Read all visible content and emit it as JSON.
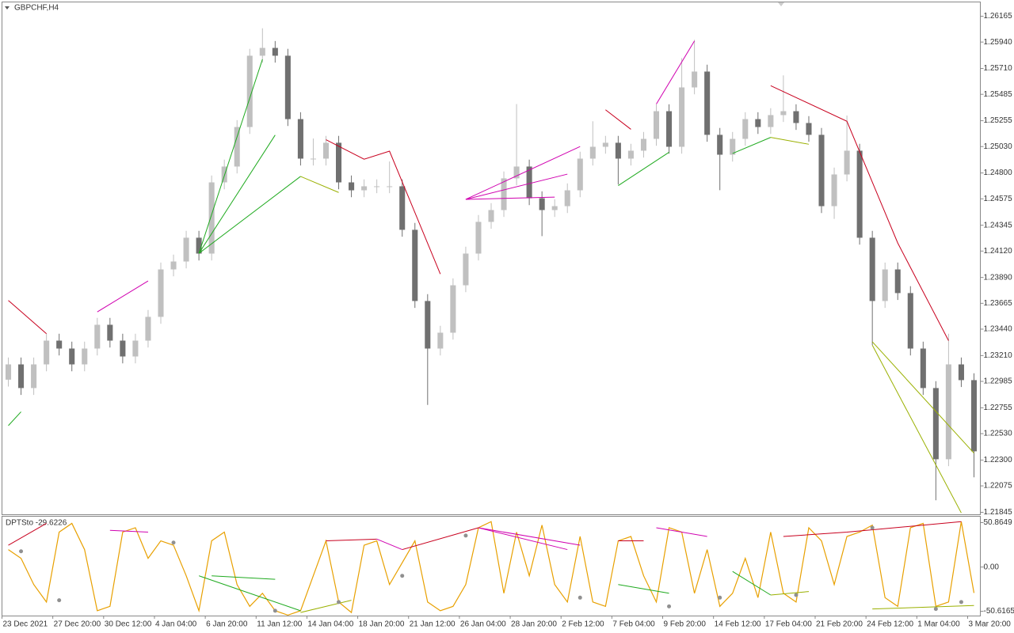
{
  "chart_data": [
    {
      "type": "candlestick",
      "title": "GBPCHF,H4",
      "up_color": "#c0c0c0",
      "down_color": "#707070",
      "categories": [
        "23 Dec 2021",
        null,
        null,
        null,
        "27 Dec 20:00",
        null,
        null,
        null,
        "30 Dec 12:00",
        null,
        null,
        null,
        "4 Jan 04:00",
        null,
        null,
        null,
        "6 Jan 20:00",
        null,
        null,
        null,
        "11 Jan 12:00",
        null,
        null,
        null,
        "14 Jan 04:00",
        null,
        null,
        null,
        "18 Jan 20:00",
        null,
        null,
        null,
        "21 Jan 12:00",
        null,
        null,
        null,
        "26 Jan 04:00",
        null,
        null,
        null,
        "28 Jan 20:00",
        null,
        null,
        null,
        "2 Feb 12:00",
        null,
        null,
        null,
        "7 Feb 04:00",
        null,
        null,
        null,
        "9 Feb 20:00",
        null,
        null,
        null,
        "14 Feb 12:00",
        null,
        null,
        null,
        "17 Feb 04:00",
        null,
        null,
        null,
        "21 Feb 20:00",
        null,
        null,
        null,
        "24 Feb 12:00",
        null,
        null,
        null,
        "1 Mar 04:00",
        null,
        null,
        null,
        "3 Mar 20:00"
      ],
      "open": [
        1.23,
        1.23133,
        1.22927,
        1.23133,
        1.2334,
        1.23271,
        1.23133,
        1.23271,
        1.23478,
        1.2334,
        1.23202,
        1.2334,
        1.23547,
        1.2396,
        1.24029,
        1.24236,
        1.24098,
        1.24718,
        1.24856,
        1.252,
        1.25821,
        1.25889,
        1.25821,
        1.25269,
        1.24925,
        1.24925,
        1.25063,
        1.24718,
        1.24649,
        1.24684,
        1.24684,
        1.24684,
        1.24305,
        1.23685,
        1.23271,
        1.23409,
        1.23822,
        1.24098,
        1.24374,
        1.24477,
        1.24753,
        1.24856,
        1.2458,
        1.24477,
        1.24511,
        1.24649,
        1.24925,
        1.25028,
        1.25063,
        1.24925,
        1.24994,
        1.25097,
        1.25338,
        1.25028,
        1.25545,
        1.25683,
        1.25132,
        1.24959,
        1.25097,
        1.25269,
        1.252,
        1.25304,
        1.25338,
        1.25235,
        1.25132,
        1.24511,
        1.24787,
        1.24994,
        1.24236,
        1.23685,
        1.2396,
        1.23754,
        1.23271,
        1.22927,
        1.22307,
        1.23133,
        1.22996
      ],
      "high": [
        1.23193,
        1.23193,
        1.23193,
        1.234,
        1.234,
        1.23331,
        1.23331,
        1.23538,
        1.23538,
        1.234,
        1.234,
        1.23607,
        1.2402,
        1.24089,
        1.24296,
        1.24296,
        1.24778,
        1.24916,
        1.2526,
        1.25881,
        1.2606,
        1.25949,
        1.25881,
        1.25329,
        1.251,
        1.25123,
        1.25123,
        1.24778,
        1.24744,
        1.24744,
        1.249,
        1.24744,
        1.24365,
        1.23745,
        1.23469,
        1.23882,
        1.24158,
        1.24434,
        1.24537,
        1.24813,
        1.254,
        1.24916,
        1.2464,
        1.24571,
        1.24709,
        1.24985,
        1.2525,
        1.25123,
        1.25123,
        1.25054,
        1.25157,
        1.25398,
        1.25398,
        1.258,
        1.2596,
        1.25743,
        1.25192,
        1.25157,
        1.25329,
        1.25329,
        1.25364,
        1.2565,
        1.25398,
        1.25295,
        1.25192,
        1.24847,
        1.253,
        1.25054,
        1.24296,
        1.2402,
        1.2402,
        1.23814,
        1.23331,
        1.22987,
        1.234,
        1.23193,
        1.23056
      ],
      "low": [
        1.2294,
        1.22867,
        1.22867,
        1.23073,
        1.23211,
        1.23073,
        1.23073,
        1.23211,
        1.2328,
        1.23142,
        1.23142,
        1.2328,
        1.23487,
        1.239,
        1.23969,
        1.24038,
        1.24038,
        1.24658,
        1.24796,
        1.2514,
        1.25761,
        1.25761,
        1.25209,
        1.24865,
        1.24865,
        1.24865,
        1.24658,
        1.24589,
        1.24589,
        1.24624,
        1.24624,
        1.24245,
        1.23625,
        1.2278,
        1.23211,
        1.23349,
        1.23762,
        1.24038,
        1.24314,
        1.24417,
        1.24693,
        1.2452,
        1.2425,
        1.24417,
        1.24451,
        1.24589,
        1.24865,
        1.24968,
        1.247,
        1.24865,
        1.24934,
        1.25037,
        1.24968,
        1.24968,
        1.25485,
        1.25072,
        1.2465,
        1.24899,
        1.25037,
        1.2514,
        1.2514,
        1.25244,
        1.25175,
        1.25072,
        1.24451,
        1.244,
        1.24727,
        1.24176,
        1.233,
        1.23625,
        1.23694,
        1.23211,
        1.22867,
        1.2195,
        1.22247,
        1.22936,
        1.2215
      ],
      "close": [
        1.23133,
        1.22927,
        1.23133,
        1.2334,
        1.23271,
        1.23133,
        1.23271,
        1.23478,
        1.2334,
        1.23202,
        1.2334,
        1.23547,
        1.2396,
        1.24029,
        1.24236,
        1.24098,
        1.24718,
        1.24856,
        1.252,
        1.25821,
        1.25889,
        1.25821,
        1.25269,
        1.24925,
        1.24925,
        1.25063,
        1.24718,
        1.24649,
        1.24684,
        1.24684,
        1.24684,
        1.24305,
        1.23685,
        1.23271,
        1.23409,
        1.23822,
        1.24098,
        1.24374,
        1.24477,
        1.24753,
        1.24856,
        1.2458,
        1.24477,
        1.24511,
        1.24649,
        1.24925,
        1.25028,
        1.25063,
        1.24925,
        1.24994,
        1.25097,
        1.25338,
        1.25028,
        1.25545,
        1.25683,
        1.25132,
        1.24959,
        1.25097,
        1.25269,
        1.252,
        1.25304,
        1.25338,
        1.25235,
        1.25132,
        1.24511,
        1.24787,
        1.24994,
        1.24236,
        1.23685,
        1.2396,
        1.23754,
        1.23271,
        1.22927,
        1.22307,
        1.23133,
        1.22996,
        1.22376
      ],
      "lines": [
        {
          "color": "#c8001e",
          "x": [
            0,
            3
          ],
          "y": [
            1.2369,
            1.234
          ]
        },
        {
          "color": "#d000b0",
          "x": [
            7,
            11
          ],
          "y": [
            1.2359,
            1.2386
          ]
        },
        {
          "color": "#1faa1f",
          "x": [
            0,
            1
          ],
          "y": [
            1.226,
            1.2272
          ]
        },
        {
          "color": "#1faa1f",
          "x": [
            15,
            20
          ],
          "y": [
            1.241,
            1.2579
          ]
        },
        {
          "color": "#1faa1f",
          "x": [
            15,
            21
          ],
          "y": [
            1.241,
            1.2513
          ]
        },
        {
          "color": "#1faa1f",
          "x": [
            15,
            23
          ],
          "y": [
            1.241,
            1.2477
          ]
        },
        {
          "color": "#9ab000",
          "x": [
            23,
            26
          ],
          "y": [
            1.2477,
            1.2463
          ]
        },
        {
          "color": "#c8001e",
          "x": [
            25,
            28,
            30,
            34
          ],
          "y": [
            1.2509,
            1.2492,
            1.2499,
            1.2392
          ]
        },
        {
          "color": "#d000b0",
          "x": [
            36,
            45
          ],
          "y": [
            1.2457,
            1.2503
          ]
        },
        {
          "color": "#d000b0",
          "x": [
            36,
            44
          ],
          "y": [
            1.2457,
            1.2479
          ]
        },
        {
          "color": "#d000b0",
          "x": [
            36,
            43
          ],
          "y": [
            1.2457,
            1.2459
          ]
        },
        {
          "color": "#c8001e",
          "x": [
            47,
            49
          ],
          "y": [
            1.2535,
            1.2518
          ]
        },
        {
          "color": "#1faa1f",
          "x": [
            48,
            52
          ],
          "y": [
            1.2469,
            1.2498
          ]
        },
        {
          "color": "#d000b0",
          "x": [
            51,
            54
          ],
          "y": [
            1.254,
            1.2595
          ]
        },
        {
          "color": "#1faa1f",
          "x": [
            57,
            60
          ],
          "y": [
            1.2497,
            1.2511
          ]
        },
        {
          "color": "#9ab000",
          "x": [
            60,
            63
          ],
          "y": [
            1.2511,
            1.2505
          ]
        },
        {
          "color": "#c8001e",
          "x": [
            60,
            66,
            70,
            74
          ],
          "y": [
            1.2556,
            1.2525,
            1.2419,
            1.2334
          ]
        },
        {
          "color": "#9ab000",
          "x": [
            68,
            76
          ],
          "y": [
            1.2333,
            1.2236
          ]
        },
        {
          "color": "#9ab000",
          "x": [
            68,
            75
          ],
          "y": [
            1.233,
            1.2184
          ]
        }
      ],
      "ylim": [
        1.21824,
        1.26289
      ],
      "yticks": [
        1.26165,
        {
          "value": 1.2594,
          "label": "1.25940"
        },
        {
          "value": 1.2571,
          "label": "1.25710"
        },
        1.25485,
        1.25255,
        {
          "value": 1.2503,
          "label": "1.25030"
        },
        {
          "value": 1.248,
          "label": "1.24800"
        },
        1.24575,
        1.24345,
        {
          "value": 1.2412,
          "label": "1.24120"
        },
        {
          "value": 1.2389,
          "label": "1.23890"
        },
        1.23665,
        {
          "value": 1.2344,
          "label": "1.23440"
        },
        {
          "value": 1.2321,
          "label": "1.23210"
        },
        1.22985,
        1.22755,
        {
          "value": 1.2253,
          "label": "1.22530"
        },
        {
          "value": 1.223,
          "label": "1.22300"
        },
        1.22075,
        1.21845
      ]
    },
    {
      "type": "line",
      "title": "DPTSto -29.6226",
      "color": "#e8a000",
      "values": [
        20,
        10,
        -20,
        -40,
        40,
        50,
        20,
        -50,
        -45,
        40,
        45,
        10,
        30,
        25,
        -10,
        -50,
        30,
        40,
        -20,
        -45,
        -30,
        -50,
        -55,
        -50,
        -10,
        30,
        -40,
        -52,
        25,
        30,
        -20,
        5,
        30,
        -40,
        -50,
        -45,
        -20,
        45,
        52,
        -30,
        40,
        -10,
        48,
        -20,
        -40,
        35,
        -40,
        -45,
        30,
        35,
        -10,
        -40,
        45,
        40,
        -30,
        20,
        -45,
        -30,
        10,
        -35,
        40,
        -30,
        -40,
        45,
        30,
        -20,
        35,
        40,
        48,
        -35,
        -45,
        45,
        50,
        -45,
        -40,
        52,
        -29.6226
      ],
      "markers": {
        "color": "#909090",
        "x": [
          1,
          4,
          13,
          21,
          26,
          31,
          36,
          45,
          52,
          56,
          62,
          68,
          73,
          75
        ],
        "y": [
          18,
          -38,
          28,
          -50,
          -40,
          -10,
          36,
          -35,
          -45,
          -35,
          -32,
          45,
          -48,
          -40
        ]
      },
      "lines": [
        {
          "color": "#c8001e",
          "x": [
            0,
            3
          ],
          "y": [
            25,
            50
          ]
        },
        {
          "color": "#d000b0",
          "x": [
            8,
            11
          ],
          "y": [
            42,
            40
          ]
        },
        {
          "color": "#1faa1f",
          "x": [
            16,
            21
          ],
          "y": [
            -10,
            -14
          ]
        },
        {
          "color": "#1faa1f",
          "x": [
            15,
            23
          ],
          "y": [
            -10,
            -50
          ]
        },
        {
          "color": "#9ab000",
          "x": [
            23,
            27
          ],
          "y": [
            -52,
            -38
          ]
        },
        {
          "color": "#c8001e",
          "x": [
            25,
            29
          ],
          "y": [
            30,
            32
          ]
        },
        {
          "color": "#d000b0",
          "x": [
            29,
            31
          ],
          "y": [
            32,
            20
          ]
        },
        {
          "color": "#c8001e",
          "x": [
            31,
            37
          ],
          "y": [
            20,
            45
          ]
        },
        {
          "color": "#d000b0",
          "x": [
            37,
            45
          ],
          "y": [
            45,
            25
          ]
        },
        {
          "color": "#d000b0",
          "x": [
            37,
            44
          ],
          "y": [
            45,
            20
          ]
        },
        {
          "color": "#c8001e",
          "x": [
            48,
            50
          ],
          "y": [
            30,
            30
          ]
        },
        {
          "color": "#1faa1f",
          "x": [
            48,
            52
          ],
          "y": [
            -20,
            -30
          ]
        },
        {
          "color": "#d000b0",
          "x": [
            51,
            55
          ],
          "y": [
            45,
            35
          ]
        },
        {
          "color": "#1faa1f",
          "x": [
            57,
            60
          ],
          "y": [
            -5,
            -32
          ]
        },
        {
          "color": "#9ab000",
          "x": [
            60,
            63
          ],
          "y": [
            -32,
            -28
          ]
        },
        {
          "color": "#c8001e",
          "x": [
            61,
            66,
            75
          ],
          "y": [
            35,
            40,
            52
          ]
        },
        {
          "color": "#9ab000",
          "x": [
            68,
            76
          ],
          "y": [
            -48,
            -44
          ]
        }
      ],
      "ylim": [
        -56,
        58.1
      ],
      "yticks": [
        50.8649,
        {
          "value": 0,
          "label": "0.00"
        },
        -50.6165
      ]
    }
  ]
}
